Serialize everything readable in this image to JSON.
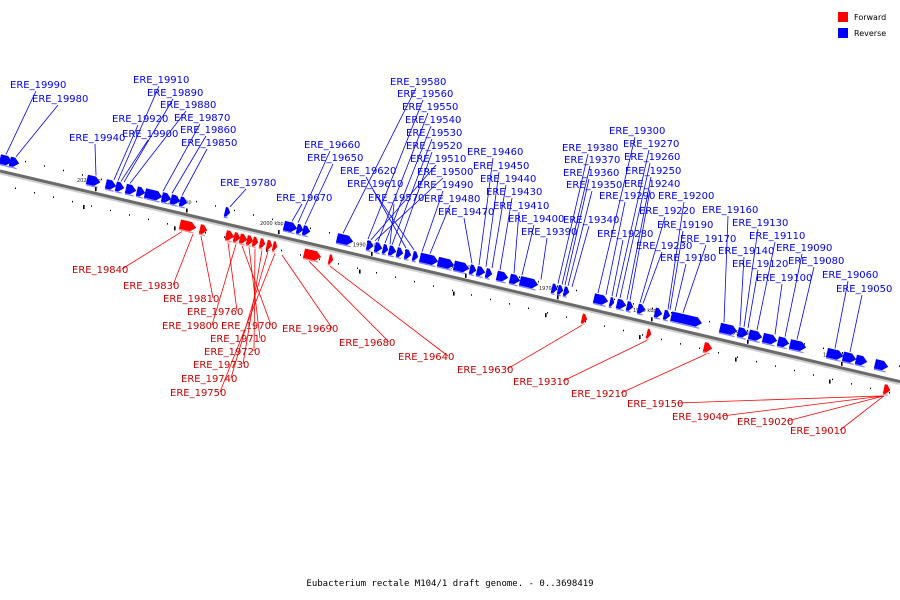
{
  "legend": {
    "forward_label": "Forward",
    "reverse_label": "Reverse",
    "forward_color": "#ff0000",
    "reverse_color": "#0000ff"
  },
  "caption": "Eubacterium rectale M104/1 draft genome. - 0..3698419",
  "scale_labels": [
    "2020 kbp",
    "2010 kbp",
    "2000 kbp",
    "1990 kbp",
    "1980 kbp",
    "1970 kbp",
    "1960 kbp",
    "1950 kbp",
    "1940 kbp"
  ],
  "genes": {
    "reverse": [
      "ERE_19990",
      "ERE_19980",
      "ERE_19940",
      "ERE_19910",
      "ERE_19890",
      "ERE_19880",
      "ERE_19920",
      "ERE_19900",
      "ERE_19870",
      "ERE_19860",
      "ERE_19850",
      "ERE_19780",
      "ERE_19670",
      "ERE_19660",
      "ERE_19650",
      "ERE_19580",
      "ERE_19560",
      "ERE_19550",
      "ERE_19540",
      "ERE_19530",
      "ERE_19520",
      "ERE_19620",
      "ERE_19510",
      "ERE_19610",
      "ERE_19500",
      "ERE_19490",
      "ERE_19570",
      "ERE_19480",
      "ERE_19470",
      "ERE_19460",
      "ERE_19450",
      "ERE_19440",
      "ERE_19430",
      "ERE_19410",
      "ERE_19400",
      "ERE_19390",
      "ERE_19380",
      "ERE_19370",
      "ERE_19360",
      "ERE_19350",
      "ERE_19340",
      "ERE_19300",
      "ERE_19270",
      "ERE_19260",
      "ERE_19250",
      "ERE_19240",
      "ERE_19290",
      "ERE_19200",
      "ERE_19220",
      "ERE_19280",
      "ERE_19190",
      "ERE_19230",
      "ERE_19170",
      "ERE_19180",
      "ERE_19160",
      "ERE_19130",
      "ERE_19140",
      "ERE_19110",
      "ERE_19120",
      "ERE_19090",
      "ERE_19080",
      "ERE_19100",
      "ERE_19060",
      "ERE_19050"
    ],
    "forward": [
      "ERE_19840",
      "ERE_19830",
      "ERE_19810",
      "ERE_19760",
      "ERE_19800",
      "ERE_19700",
      "ERE_19710",
      "ERE_19720",
      "ERE_19730",
      "ERE_19740",
      "ERE_19750",
      "ERE_19690",
      "ERE_19680",
      "ERE_19640",
      "ERE_19630",
      "ERE_19310",
      "ERE_19210",
      "ERE_19150",
      "ERE_19040",
      "ERE_19020",
      "ERE_19010"
    ]
  }
}
